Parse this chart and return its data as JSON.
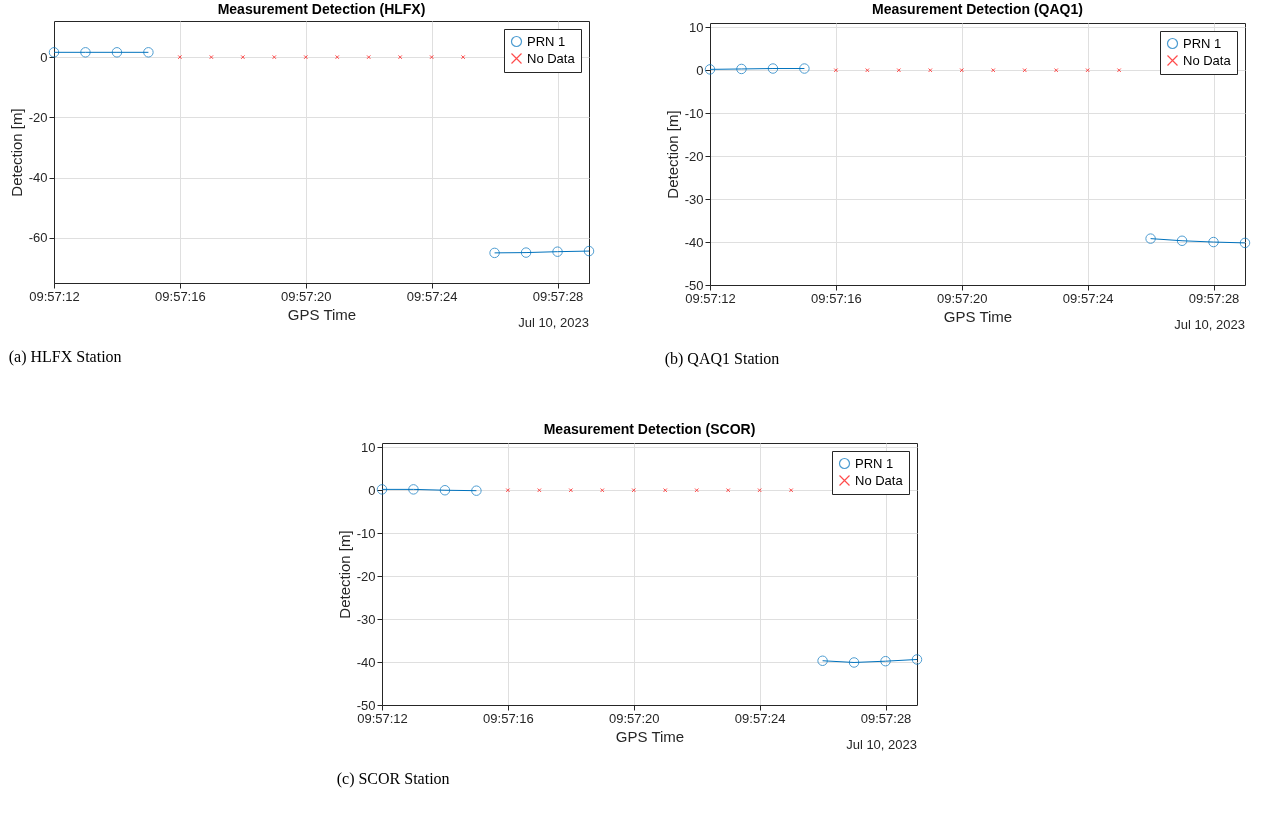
{
  "chart_data": [
    {
      "type": "line",
      "title": "Measurement Detection  (HLFX)",
      "xlabel": "GPS Time",
      "ylabel": "Detection [m]",
      "annotations": [
        "Jul 10, 2023",
        "(a) HLFX Station"
      ],
      "grid": true,
      "legend": "top right",
      "xlim": [
        "2023-07-10T09:57:12",
        "2023-07-10T09:57:29"
      ],
      "ylim": [
        -75,
        12
      ],
      "yticks": [
        -60,
        -40,
        -20,
        0
      ],
      "xticks": [
        {
          "value": "2023-07-10T09:57:12",
          "label": "09:57:12"
        },
        {
          "value": "2023-07-10T09:57:16",
          "label": "09:57:16"
        },
        {
          "value": "2023-07-10T09:57:20",
          "label": "09:57:20"
        },
        {
          "value": "2023-07-10T09:57:24",
          "label": "09:57:24"
        },
        {
          "value": "2023-07-10T09:57:28",
          "label": "09:57:28"
        }
      ],
      "series": [
        {
          "name": "PRN 1",
          "type": "line",
          "color": "#0072bd",
          "marker": "circle",
          "line_style": "solid",
          "x": [
            "2023-07-10T09:57:12",
            "2023-07-10T09:57:13",
            "2023-07-10T09:57:14",
            "2023-07-10T09:57:15",
            "2023-07-10T09:57:16",
            "2023-07-10T09:57:25",
            "2023-07-10T09:57:26",
            "2023-07-10T09:57:27",
            "2023-07-10T09:57:28",
            "2023-07-10T09:57:29"
          ],
          "values": [
            1.6,
            1.6,
            1.6,
            1.6,
            null,
            null,
            -65,
            -64.9,
            -64.6,
            -64.4
          ]
        },
        {
          "name": "No Data",
          "type": "scatter",
          "color": "#ff0000",
          "marker": "cross",
          "x": [
            "2023-07-10T09:57:16",
            "2023-07-10T09:57:17",
            "2023-07-10T09:57:18",
            "2023-07-10T09:57:19",
            "2023-07-10T09:57:20",
            "2023-07-10T09:57:21",
            "2023-07-10T09:57:22",
            "2023-07-10T09:57:23",
            "2023-07-10T09:57:24",
            "2023-07-10T09:57:25"
          ],
          "values": [
            0,
            0,
            0,
            0,
            0,
            0,
            0,
            0,
            0,
            0
          ]
        }
      ]
    },
    {
      "type": "line",
      "title": "Measurement Detection  (QAQ1)",
      "xlabel": "GPS Time",
      "ylabel": "Detection [m]",
      "annotations": [
        "Jul 10, 2023",
        "(b) QAQ1 Station"
      ],
      "grid": true,
      "legend": "top right",
      "xlim": [
        "2023-07-10T09:57:12",
        "2023-07-10T09:57:29"
      ],
      "ylim": [
        -50,
        11
      ],
      "yticks": [
        -50,
        -40,
        -30,
        -20,
        -10,
        0,
        10
      ],
      "xticks": [
        {
          "value": "2023-07-10T09:57:12",
          "label": "09:57:12"
        },
        {
          "value": "2023-07-10T09:57:16",
          "label": "09:57:16"
        },
        {
          "value": "2023-07-10T09:57:20",
          "label": "09:57:20"
        },
        {
          "value": "2023-07-10T09:57:24",
          "label": "09:57:24"
        },
        {
          "value": "2023-07-10T09:57:28",
          "label": "09:57:28"
        }
      ],
      "series": [
        {
          "name": "PRN 1",
          "type": "line",
          "color": "#0072bd",
          "marker": "circle",
          "line_style": "solid",
          "x": [
            "2023-07-10T09:57:12",
            "2023-07-10T09:57:13",
            "2023-07-10T09:57:14",
            "2023-07-10T09:57:15",
            "2023-07-10T09:57:16",
            "2023-07-10T09:57:25",
            "2023-07-10T09:57:26",
            "2023-07-10T09:57:27",
            "2023-07-10T09:57:28",
            "2023-07-10T09:57:29"
          ],
          "values": [
            0.2,
            0.3,
            0.4,
            0.4,
            null,
            null,
            -39.2,
            -39.7,
            -40,
            -40.2
          ]
        },
        {
          "name": "No Data",
          "type": "scatter",
          "color": "#ff0000",
          "marker": "cross",
          "x": [
            "2023-07-10T09:57:16",
            "2023-07-10T09:57:17",
            "2023-07-10T09:57:18",
            "2023-07-10T09:57:19",
            "2023-07-10T09:57:20",
            "2023-07-10T09:57:21",
            "2023-07-10T09:57:22",
            "2023-07-10T09:57:23",
            "2023-07-10T09:57:24",
            "2023-07-10T09:57:25"
          ],
          "values": [
            0,
            0,
            0,
            0,
            0,
            0,
            0,
            0,
            0,
            0
          ]
        }
      ]
    },
    {
      "type": "line",
      "title": "Measurement Detection  (SCOR)",
      "xlabel": "GPS Time",
      "ylabel": "Detection [m]",
      "annotations": [
        "Jul 10, 2023",
        "(c) SCOR Station"
      ],
      "grid": true,
      "legend": "top right",
      "xlim": [
        "2023-07-10T09:57:12",
        "2023-07-10T09:57:29"
      ],
      "ylim": [
        -50,
        11
      ],
      "yticks": [
        -50,
        -40,
        -30,
        -20,
        -10,
        0,
        10
      ],
      "xticks": [
        {
          "value": "2023-07-10T09:57:12",
          "label": "09:57:12"
        },
        {
          "value": "2023-07-10T09:57:16",
          "label": "09:57:16"
        },
        {
          "value": "2023-07-10T09:57:20",
          "label": "09:57:20"
        },
        {
          "value": "2023-07-10T09:57:24",
          "label": "09:57:24"
        },
        {
          "value": "2023-07-10T09:57:28",
          "label": "09:57:28"
        }
      ],
      "series": [
        {
          "name": "PRN 1",
          "type": "line",
          "color": "#0072bd",
          "marker": "circle",
          "line_style": "solid",
          "x": [
            "2023-07-10T09:57:12",
            "2023-07-10T09:57:13",
            "2023-07-10T09:57:14",
            "2023-07-10T09:57:15",
            "2023-07-10T09:57:16",
            "2023-07-10T09:57:25",
            "2023-07-10T09:57:26",
            "2023-07-10T09:57:27",
            "2023-07-10T09:57:28",
            "2023-07-10T09:57:29"
          ],
          "values": [
            0.2,
            0.2,
            0,
            -0.1,
            null,
            null,
            -39.7,
            -40.1,
            -39.8,
            -39.4
          ]
        },
        {
          "name": "No Data",
          "type": "scatter",
          "color": "#ff0000",
          "marker": "cross",
          "x": [
            "2023-07-10T09:57:16",
            "2023-07-10T09:57:17",
            "2023-07-10T09:57:18",
            "2023-07-10T09:57:19",
            "2023-07-10T09:57:20",
            "2023-07-10T09:57:21",
            "2023-07-10T09:57:22",
            "2023-07-10T09:57:23",
            "2023-07-10T09:57:24",
            "2023-07-10T09:57:25"
          ],
          "values": [
            0,
            0,
            0,
            0,
            0,
            0,
            0,
            0,
            0,
            0
          ]
        }
      ]
    }
  ]
}
